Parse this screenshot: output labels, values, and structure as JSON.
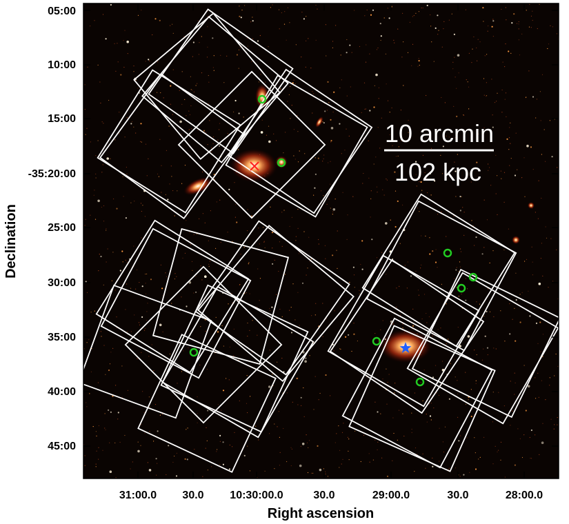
{
  "figure": {
    "xlabel": "Right ascension",
    "ylabel": "Declination",
    "x_ticks": [
      "31:00.0",
      "30.0",
      "10:30:00.0",
      "30.0",
      "29:00.0",
      "30.0",
      "28:00.0"
    ],
    "y_ticks": [
      "05:00",
      "10:00",
      "15:00",
      "-35:20:00",
      "25:00",
      "30:00",
      "35:00",
      "40:00",
      "45:00"
    ],
    "scalebar": {
      "angular": "10 arcmin",
      "physical": "102 kpc"
    },
    "colors": {
      "sky_background": "#0a0402",
      "pointing_outline": "#ffffff",
      "source_circle": "#22cc22",
      "marked_source": "#1f5fff",
      "cross_marker": "#ff2020"
    }
  }
}
